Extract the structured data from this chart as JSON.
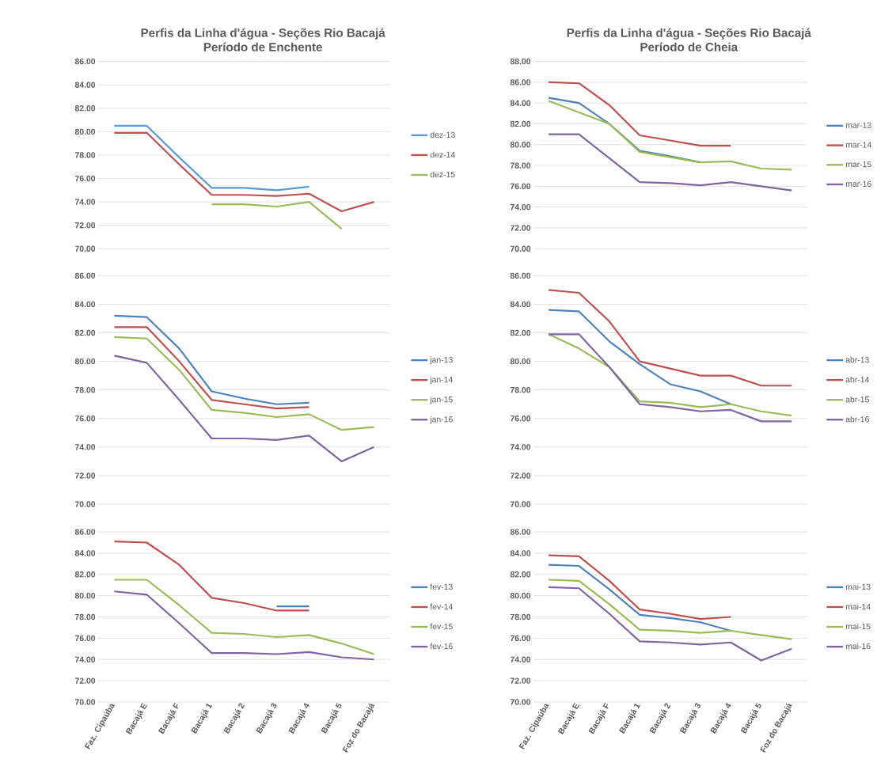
{
  "chart_data": [
    {
      "type": "line",
      "title": "Perfis da Linha d'água - Seções Rio Bacajá",
      "subtitle": "Período de Enchente",
      "categories": [
        null,
        null,
        null,
        null,
        null,
        null,
        null,
        null,
        null
      ],
      "series": [
        {
          "name": "dez-13",
          "color": "#5b9bd5",
          "values": [
            80.5,
            80.5,
            77.8,
            75.2,
            75.2,
            75.0,
            75.3,
            null,
            null
          ]
        },
        {
          "name": "dez-14",
          "color": "#c0504d",
          "values": [
            79.9,
            79.9,
            77.2,
            74.6,
            74.6,
            74.5,
            74.7,
            73.2,
            74.0
          ]
        },
        {
          "name": "dez-15",
          "color": "#9bbb59",
          "values": [
            null,
            null,
            null,
            73.8,
            73.8,
            73.6,
            74.0,
            71.7,
            null
          ]
        }
      ],
      "ylim": [
        70,
        86
      ],
      "yticks": [
        {
          "value": 70,
          "label": "70.00"
        },
        {
          "value": 72,
          "label": "72.00"
        },
        {
          "value": 74,
          "label": "74.00"
        },
        {
          "value": 76,
          "label": "76.00"
        },
        {
          "value": 78,
          "label": "78.00"
        },
        {
          "value": 80,
          "label": "80.00"
        },
        {
          "value": 82,
          "label": "82.00"
        },
        {
          "value": 84,
          "label": "84.00"
        },
        {
          "value": 86,
          "label": "86.00"
        }
      ],
      "grid": "y",
      "legend": "right",
      "marker": "none",
      "line_style": "solid",
      "tick_labels": "y"
    },
    {
      "type": "line",
      "title": "Perfis da Linha d'água - Seções Rio Bacajá",
      "subtitle": "Período de Cheia",
      "categories": [
        null,
        null,
        null,
        null,
        null,
        null,
        null,
        null,
        null
      ],
      "series": [
        {
          "name": "mar-13",
          "color": "#4f81bd",
          "values": [
            84.5,
            84.0,
            82.0,
            79.4,
            78.9,
            78.3,
            null,
            null,
            null
          ]
        },
        {
          "name": "mar-14",
          "color": "#c0504d",
          "values": [
            86.0,
            85.9,
            83.8,
            80.9,
            80.4,
            79.9,
            79.9,
            null,
            null
          ]
        },
        {
          "name": "mar-15",
          "color": "#9bbb59",
          "values": [
            84.2,
            83.1,
            82.0,
            79.3,
            78.8,
            78.3,
            78.4,
            77.7,
            77.6
          ]
        },
        {
          "name": "mar-16",
          "color": "#8064a2",
          "values": [
            81.0,
            81.0,
            78.7,
            76.4,
            76.3,
            76.1,
            76.4,
            76.0,
            75.6
          ]
        }
      ],
      "ylim": [
        70,
        88
      ],
      "yticks": [
        {
          "value": 70,
          "label": "70.00"
        },
        {
          "value": 72,
          "label": "72.00"
        },
        {
          "value": 74,
          "label": "74.00"
        },
        {
          "value": 76,
          "label": "76.00"
        },
        {
          "value": 78,
          "label": "78.00"
        },
        {
          "value": 80,
          "label": "80.00"
        },
        {
          "value": 82,
          "label": "82.00"
        },
        {
          "value": 84,
          "label": "84.00"
        },
        {
          "value": 86,
          "label": "86.00"
        },
        {
          "value": 88,
          "label": "88.00"
        }
      ],
      "grid": "y",
      "legend": "right",
      "marker": "none",
      "line_style": "solid",
      "tick_labels": "y"
    },
    {
      "type": "line",
      "categories": [
        null,
        null,
        null,
        null,
        null,
        null,
        null,
        null,
        null
      ],
      "series": [
        {
          "name": "jan-13",
          "color": "#4f81bd",
          "values": [
            83.2,
            83.1,
            80.9,
            77.9,
            77.4,
            77.0,
            77.1,
            null,
            null
          ]
        },
        {
          "name": "jan-14",
          "color": "#c0504d",
          "values": [
            82.4,
            82.4,
            80.0,
            77.3,
            77.0,
            76.7,
            76.8,
            null,
            null
          ]
        },
        {
          "name": "jan-15",
          "color": "#9bbb59",
          "values": [
            81.7,
            81.6,
            79.4,
            76.6,
            76.4,
            76.1,
            76.3,
            75.2,
            75.4
          ]
        },
        {
          "name": "jan-16",
          "color": "#8064a2",
          "values": [
            80.4,
            79.9,
            77.3,
            74.6,
            74.6,
            74.5,
            74.8,
            73.0,
            74.0
          ]
        }
      ],
      "ylim": [
        70,
        86
      ],
      "yticks": [
        {
          "value": 70,
          "label": "70.00"
        },
        {
          "value": 72,
          "label": "72.00"
        },
        {
          "value": 74,
          "label": "74.00"
        },
        {
          "value": 76,
          "label": "76.00"
        },
        {
          "value": 78,
          "label": "78.00"
        },
        {
          "value": 80,
          "label": "80.00"
        },
        {
          "value": 82,
          "label": "82.00"
        },
        {
          "value": 84,
          "label": "84.00"
        },
        {
          "value": 86,
          "label": "86.00"
        }
      ],
      "grid": "y",
      "legend": "right",
      "marker": "none",
      "line_style": "solid",
      "tick_labels": "y"
    },
    {
      "type": "line",
      "categories": [
        null,
        null,
        null,
        null,
        null,
        null,
        null,
        null,
        null
      ],
      "series": [
        {
          "name": "abr-13",
          "color": "#4f81bd",
          "values": [
            83.6,
            83.5,
            81.4,
            79.8,
            78.4,
            77.9,
            77.0,
            null,
            null
          ]
        },
        {
          "name": "abr-14",
          "color": "#c0504d",
          "values": [
            85.0,
            84.8,
            82.8,
            80.0,
            79.5,
            79.0,
            79.0,
            78.3,
            78.3
          ]
        },
        {
          "name": "abr-15",
          "color": "#9bbb59",
          "values": [
            81.9,
            80.9,
            79.6,
            77.2,
            77.1,
            76.8,
            77.0,
            76.5,
            76.2
          ]
        },
        {
          "name": "abr-16",
          "color": "#8064a2",
          "values": [
            81.9,
            81.9,
            79.6,
            77.0,
            76.8,
            76.5,
            76.6,
            75.8,
            75.8
          ]
        }
      ],
      "ylim": [
        70,
        86
      ],
      "yticks": [
        {
          "value": 70,
          "label": "70.00"
        },
        {
          "value": 72,
          "label": "72.00"
        },
        {
          "value": 74,
          "label": "74.00"
        },
        {
          "value": 76,
          "label": "76.00"
        },
        {
          "value": 78,
          "label": "78.00"
        },
        {
          "value": 80,
          "label": "80.00"
        },
        {
          "value": 82,
          "label": "82.00"
        },
        {
          "value": 84,
          "label": "84.00"
        },
        {
          "value": 86,
          "label": "86.00"
        }
      ],
      "grid": "y",
      "legend": "right",
      "marker": "none",
      "line_style": "solid",
      "tick_labels": "y"
    },
    {
      "type": "line",
      "categories": [
        "Faz. Cipaúba",
        "Bacajá E",
        "Bacajá F",
        "Bacajá 1",
        "Bacajá 2",
        "Bacajá 3",
        "Bacajá 4",
        "Bacajá 5",
        "Foz do Bacajá"
      ],
      "series": [
        {
          "name": "fev-13",
          "color": "#4f81bd",
          "values": [
            null,
            null,
            null,
            null,
            null,
            79.0,
            79.0,
            null,
            null
          ]
        },
        {
          "name": "fev-14",
          "color": "#c0504d",
          "values": [
            85.1,
            85.0,
            82.9,
            79.8,
            79.3,
            78.6,
            78.6,
            null,
            null
          ]
        },
        {
          "name": "fev-15",
          "color": "#9bbb59",
          "values": [
            81.5,
            81.5,
            79.1,
            76.5,
            76.4,
            76.1,
            76.3,
            75.5,
            74.5
          ]
        },
        {
          "name": "fev-16",
          "color": "#8064a2",
          "values": [
            80.4,
            80.1,
            77.4,
            74.6,
            74.6,
            74.5,
            74.7,
            74.2,
            74.0
          ]
        }
      ],
      "ylim": [
        70,
        86
      ],
      "yticks": [
        {
          "value": 70,
          "label": "70.00"
        },
        {
          "value": 72,
          "label": "72.00"
        },
        {
          "value": 74,
          "label": "74.00"
        },
        {
          "value": 76,
          "label": "76.00"
        },
        {
          "value": 78,
          "label": "78.00"
        },
        {
          "value": 80,
          "label": "80.00"
        },
        {
          "value": 82,
          "label": "82.00"
        },
        {
          "value": 84,
          "label": "84.00"
        },
        {
          "value": 86,
          "label": "86.00"
        }
      ],
      "grid": "y",
      "legend": "right",
      "marker": "none",
      "line_style": "solid"
    },
    {
      "type": "line",
      "categories": [
        "Faz. Cipaúba",
        "Bacajá E",
        "Bacajá F",
        "Bacajá 1",
        "Bacajá 2",
        "Bacajá 3",
        "Bacajá 4",
        "Bacajá 5",
        "Foz do Bacajá"
      ],
      "series": [
        {
          "name": "mai-13",
          "color": "#4f81bd",
          "values": [
            82.9,
            82.8,
            80.6,
            78.2,
            77.9,
            77.5,
            76.7,
            null,
            null
          ]
        },
        {
          "name": "mai-14",
          "color": "#c0504d",
          "values": [
            83.8,
            83.7,
            81.4,
            78.7,
            78.3,
            77.8,
            78.0,
            null,
            null
          ]
        },
        {
          "name": "mai-15",
          "color": "#9bbb59",
          "values": [
            81.5,
            81.4,
            79.2,
            76.8,
            76.7,
            76.5,
            76.7,
            76.3,
            75.9
          ]
        },
        {
          "name": "mai-16",
          "color": "#8064a2",
          "values": [
            80.8,
            80.7,
            78.3,
            75.7,
            75.6,
            75.4,
            75.6,
            73.9,
            75.0
          ]
        }
      ],
      "ylim": [
        70,
        86
      ],
      "yticks": [
        {
          "value": 70,
          "label": "70.00"
        },
        {
          "value": 72,
          "label": "72.00"
        },
        {
          "value": 74,
          "label": "74.00"
        },
        {
          "value": 76,
          "label": "76.00"
        },
        {
          "value": 78,
          "label": "78.00"
        },
        {
          "value": 80,
          "label": "80.00"
        },
        {
          "value": 82,
          "label": "82.00"
        },
        {
          "value": 84,
          "label": "84.00"
        },
        {
          "value": 86,
          "label": "86.00"
        }
      ],
      "grid": "y",
      "legend": "right",
      "marker": "none",
      "line_style": "solid"
    }
  ]
}
